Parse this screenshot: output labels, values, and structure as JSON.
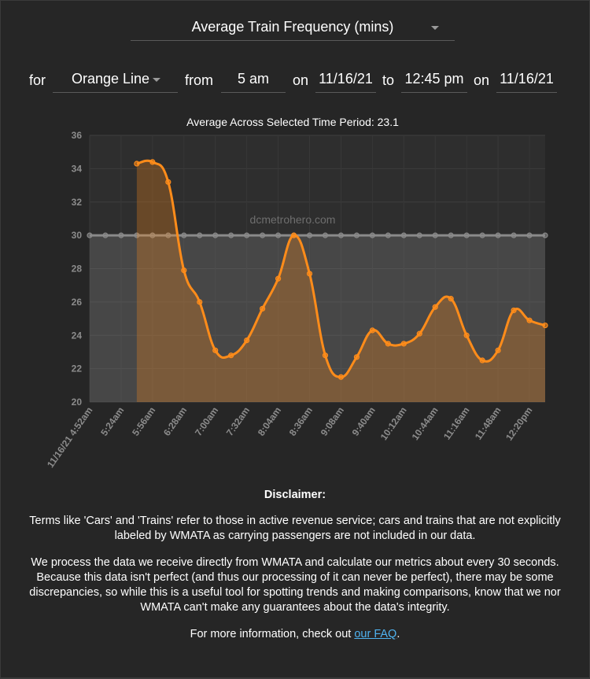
{
  "metric": {
    "label": "Average Train Frequency (mins)"
  },
  "filters": {
    "for_label": "for",
    "line": "Orange Line",
    "from_label": "from",
    "start_time": "5 am",
    "on_label_1": "on",
    "start_date": "11/16/21",
    "to_label": "to",
    "end_time": "12:45 pm",
    "on_label_2": "on",
    "end_date": "11/16/21"
  },
  "chart_data": {
    "type": "area",
    "title": "Average Across Selected Time Period: 23.1",
    "watermark": "dcmetrohero.com",
    "ylim": [
      20,
      36
    ],
    "yticks": [
      20,
      22,
      24,
      26,
      28,
      30,
      32,
      34,
      36
    ],
    "xticks": [
      "11/16/21 4:52am",
      "5:24am",
      "5:56am",
      "6:28am",
      "7:00am",
      "7:32am",
      "8:04am",
      "8:36am",
      "9:08am",
      "9:40am",
      "10:12am",
      "10:44am",
      "11:16am",
      "11:48am",
      "12:20pm"
    ],
    "x_start_minutes": 292,
    "x_step_minutes": 8,
    "grid": true,
    "series": [
      {
        "color": "#ff8c1a",
        "start_index": 3,
        "values": [
          34.3,
          34.4,
          33.2,
          27.9,
          26.0,
          23.1,
          22.8,
          23.7,
          25.6,
          27.4,
          30.0,
          27.7,
          22.8,
          21.5,
          22.7,
          24.3,
          23.5,
          23.5,
          24.1,
          25.7,
          26.2,
          24.0,
          22.5,
          23.1,
          25.5,
          24.9,
          24.6
        ]
      },
      {
        "color": "#8a8a8a",
        "start_index": 0,
        "values": [
          30,
          30,
          30,
          30,
          30,
          30,
          30,
          30,
          30,
          30,
          30,
          30,
          30,
          30,
          30,
          30,
          30,
          30,
          30,
          30,
          30,
          30,
          30,
          30,
          30,
          30,
          30,
          30,
          30,
          30
        ]
      }
    ]
  },
  "disclaimer": {
    "heading": "Disclaimer:",
    "p1": "Terms like 'Cars' and 'Trains' refer to those in active revenue service; cars and trains that are not explicitly labeled by WMATA as carrying passengers are not included in our data.",
    "p2": "We process the data we receive directly from WMATA and calculate our metrics about every 30 seconds. Because this data isn't perfect (and thus our processing of it can never be perfect), there may be some discrepancies, so while this is a useful tool for spotting trends and making comparisons, know that we nor WMATA can't make any guarantees about the data's integrity.",
    "p3_prefix": "For more information, check out ",
    "p3_link": "our FAQ",
    "p3_suffix": "."
  }
}
